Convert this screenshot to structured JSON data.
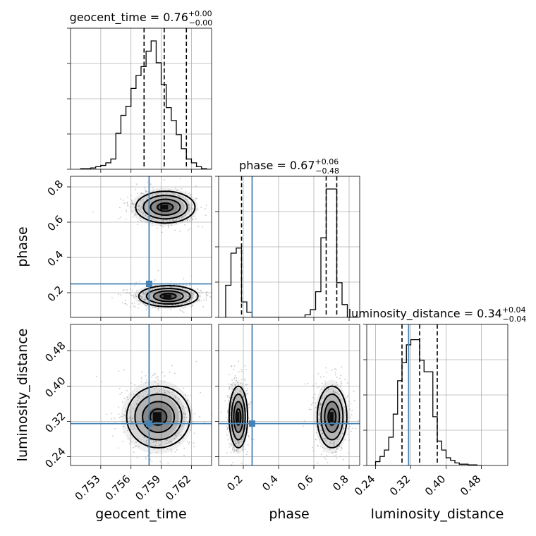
{
  "chart_data": {
    "type": "scatter",
    "subtype": "corner-plot",
    "parameters": [
      {
        "name": "geocent_time",
        "label": "geocent_time",
        "range": [
          0.75,
          0.764
        ],
        "ticks": [
          0.753,
          0.756,
          0.759,
          0.762
        ],
        "tick_labels": [
          "0.753",
          "0.756",
          "0.759",
          "0.762"
        ],
        "injection": 0.7578,
        "quantiles": [
          0.7573,
          0.7593,
          0.7615
        ],
        "title_main": "geocent_time = 0.76",
        "title_sup": "+0.00",
        "title_sub": "−0.00",
        "hist_edges": [
          0.751,
          0.7515,
          0.752,
          0.7525,
          0.753,
          0.7535,
          0.754,
          0.7545,
          0.755,
          0.7555,
          0.756,
          0.7565,
          0.757,
          0.7575,
          0.758,
          0.7585,
          0.759,
          0.7595,
          0.76,
          0.7605,
          0.761,
          0.7615,
          0.762,
          0.7625,
          0.763,
          0.7635,
          0.764
        ],
        "hist_values": [
          0.005,
          0.005,
          0.01,
          0.02,
          0.03,
          0.05,
          0.08,
          0.28,
          0.42,
          0.49,
          0.63,
          0.73,
          0.8,
          0.92,
          1.0,
          0.83,
          0.66,
          0.48,
          0.38,
          0.27,
          0.16,
          0.08,
          0.05,
          0.02,
          0.005,
          0.0
        ]
      },
      {
        "name": "phase",
        "label": "phase",
        "range": [
          0.06,
          0.86
        ],
        "ticks": [
          0.2,
          0.4,
          0.6,
          0.8
        ],
        "tick_labels": [
          "0.2",
          "0.4",
          "0.6",
          "0.8"
        ],
        "injection": 0.25,
        "quantiles": [
          0.19,
          0.67,
          0.73
        ],
        "title_main": "phase = 0.67",
        "title_sup": "+0.06",
        "title_sub": "−0.48",
        "hist_edges": [
          0.1,
          0.13,
          0.16,
          0.19,
          0.22,
          0.25,
          0.28,
          0.31,
          0.34,
          0.37,
          0.4,
          0.43,
          0.46,
          0.49,
          0.52,
          0.55,
          0.58,
          0.61,
          0.64,
          0.67,
          0.7,
          0.73,
          0.76,
          0.79,
          0.82
        ],
        "hist_values": [
          0.25,
          0.5,
          0.54,
          0.12,
          0.04,
          0.0,
          0.0,
          0.0,
          0.0,
          0.0,
          0.0,
          0.0,
          0.0,
          0.0,
          0.0,
          0.02,
          0.06,
          0.2,
          0.62,
          1.0,
          1.0,
          0.27,
          0.1,
          0.0
        ]
      },
      {
        "name": "luminosity_distance",
        "label": "luminosity_distance",
        "range": [
          0.22,
          0.54
        ],
        "ticks": [
          0.24,
          0.32,
          0.4,
          0.48
        ],
        "tick_labels": [
          "0.24",
          "0.32",
          "0.40",
          "0.48"
        ],
        "injection": 0.315,
        "quantiles": [
          0.3,
          0.34,
          0.38
        ],
        "title_main": "luminosity_distance = 0.34",
        "title_sup": "+0.04",
        "title_sub": "−0.04",
        "hist_edges": [
          0.24,
          0.25,
          0.26,
          0.27,
          0.28,
          0.29,
          0.3,
          0.31,
          0.32,
          0.33,
          0.34,
          0.35,
          0.36,
          0.37,
          0.38,
          0.39,
          0.4,
          0.41,
          0.42,
          0.43,
          0.44,
          0.45,
          0.46,
          0.47,
          0.48
        ],
        "hist_values": [
          0.03,
          0.07,
          0.12,
          0.22,
          0.4,
          0.66,
          0.8,
          0.94,
          0.98,
          0.98,
          0.82,
          0.73,
          0.73,
          0.38,
          0.19,
          0.12,
          0.06,
          0.04,
          0.02,
          0.01,
          0.01,
          0.005,
          0.005,
          0.0
        ]
      }
    ],
    "pairs": [
      {
        "x": "geocent_time",
        "y": "phase",
        "clusters": [
          {
            "cx": 0.7593,
            "cy": 0.685,
            "sx": 0.0014,
            "sy": 0.045
          },
          {
            "cx": 0.7596,
            "cy": 0.18,
            "sx": 0.0014,
            "sy": 0.03
          }
        ]
      },
      {
        "x": "geocent_time",
        "y": "luminosity_distance",
        "clusters": [
          {
            "cx": 0.7586,
            "cy": 0.33,
            "sx": 0.0015,
            "sy": 0.035
          }
        ]
      },
      {
        "x": "phase",
        "y": "luminosity_distance",
        "clusters": [
          {
            "cx": 0.17,
            "cy": 0.33,
            "sx": 0.025,
            "sy": 0.035
          },
          {
            "cx": 0.7,
            "cy": 0.33,
            "sx": 0.04,
            "sy": 0.035
          }
        ]
      }
    ],
    "truth_color": "#4682b4",
    "grid": true
  }
}
